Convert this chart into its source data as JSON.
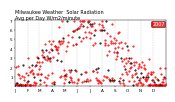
{
  "title": "Milwaukee Weather  Solar Radiation",
  "subtitle": "Avg per Day W/m2/minute",
  "background_color": "#ffffff",
  "plot_bg_color": "#ffffff",
  "line_color_red": "#ff0000",
  "line_color_black": "#000000",
  "grid_color": "#b0b0b0",
  "ylim": [
    0,
    7
  ],
  "yticks": [
    1,
    2,
    3,
    4,
    5,
    6,
    7
  ],
  "ytick_labels": [
    "1",
    "2",
    "3",
    "4",
    "5",
    "6",
    "7"
  ],
  "month_boundaries": [
    31,
    59,
    90,
    120,
    151,
    181,
    212,
    243,
    273,
    304,
    334
  ],
  "legend_label": "2007",
  "legend_color": "#ff0000",
  "title_fontsize": 3.5,
  "axis_fontsize": 3.0,
  "xtick_positions": [
    0,
    31,
    59,
    90,
    120,
    151,
    181,
    212,
    243,
    273,
    304,
    334,
    364
  ],
  "xtick_labels": [
    "J",
    "F",
    "M",
    "A",
    "M",
    "J",
    "J",
    "A",
    "S",
    "O",
    "N",
    "D",
    ""
  ]
}
